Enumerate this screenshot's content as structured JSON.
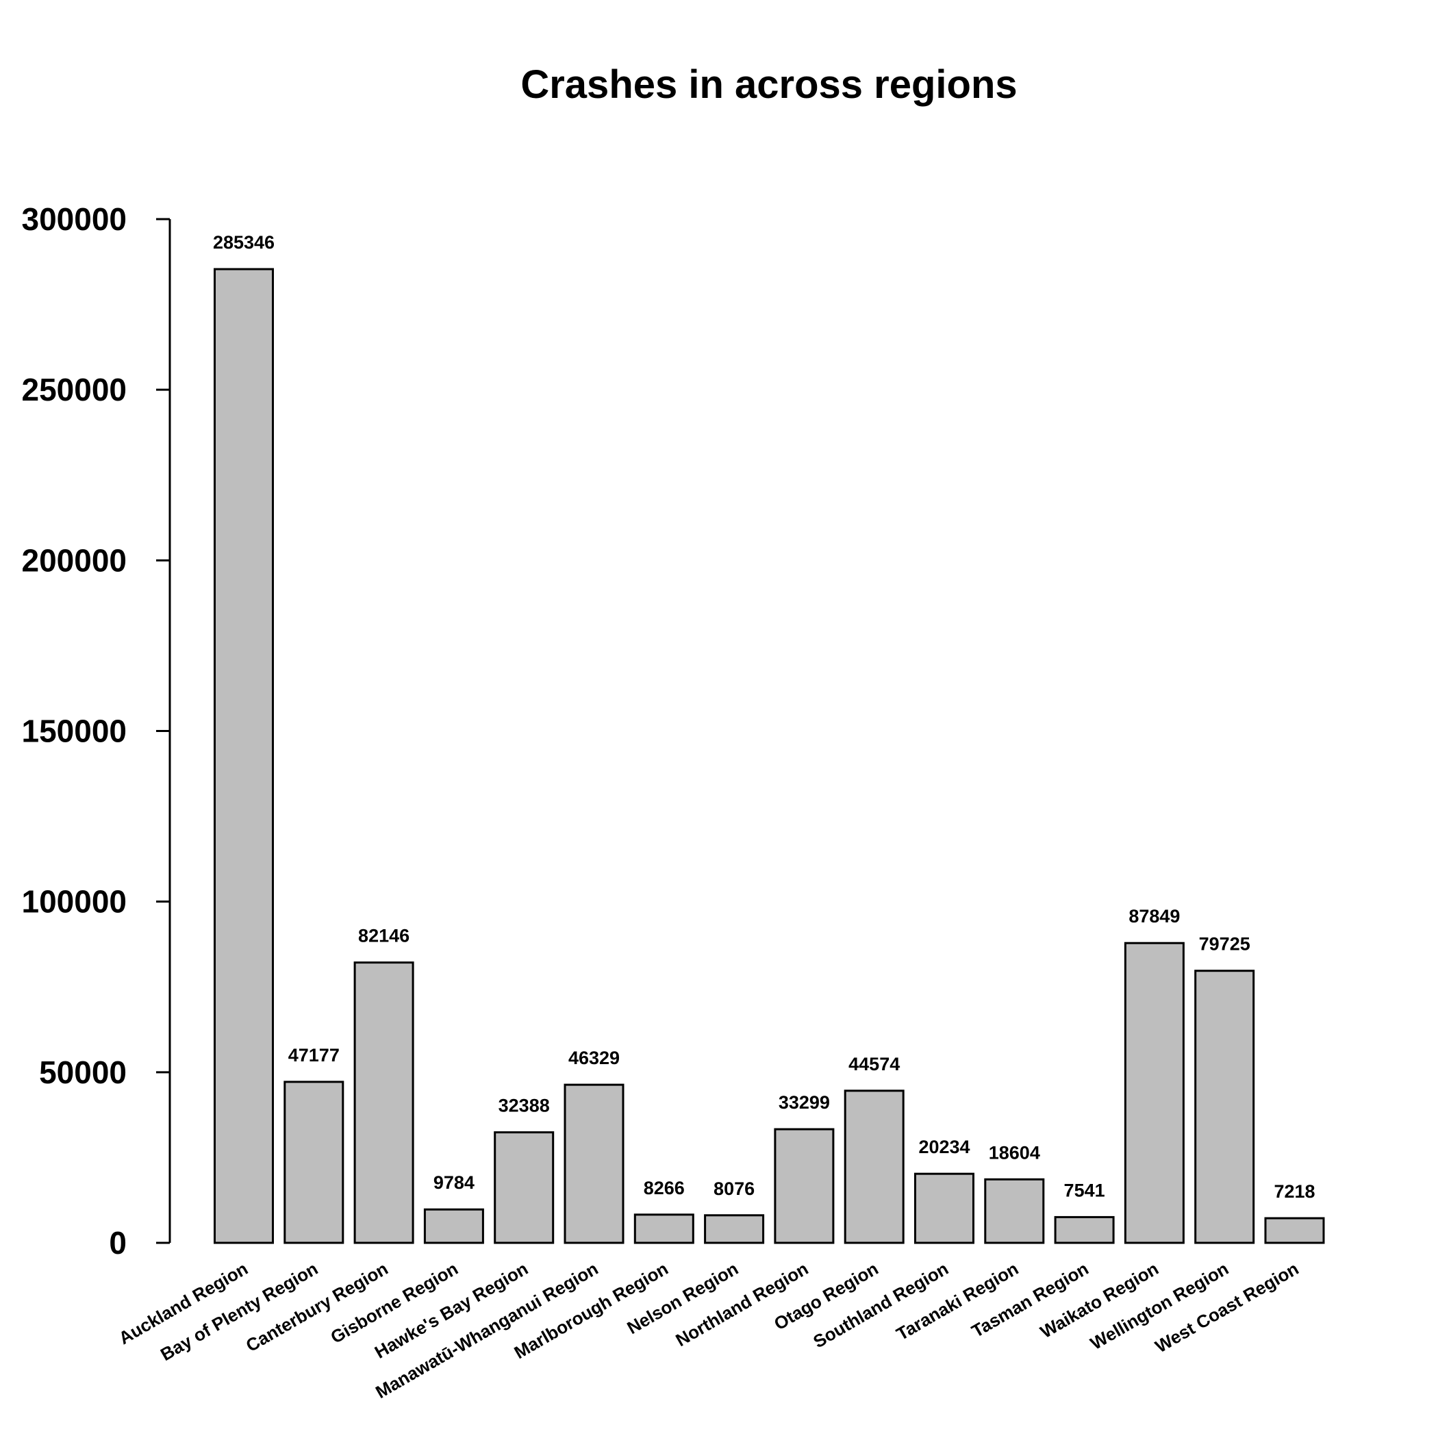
{
  "chart_data": {
    "type": "bar",
    "title": "Crashes in across regions",
    "xlabel": "",
    "ylabel": "",
    "categories": [
      "Auckland Region",
      "Bay of Plenty Region",
      "Canterbury Region",
      "Gisborne Region",
      "Hawke's Bay Region",
      "Manawatū-Whanganui Region",
      "Marlborough Region",
      "Nelson Region",
      "Northland Region",
      "Otago Region",
      "Southland Region",
      "Taranaki Region",
      "Tasman Region",
      "Waikato Region",
      "Wellington Region",
      "West Coast Region"
    ],
    "values": [
      285346,
      47177,
      82146,
      9784,
      32388,
      46329,
      8266,
      8076,
      33299,
      44574,
      20234,
      18604,
      7541,
      87849,
      79725,
      7218
    ],
    "ylim": [
      0,
      300000
    ],
    "yticks": [
      0,
      50000,
      100000,
      150000,
      200000,
      250000,
      300000
    ],
    "grid": false,
    "bar_color": "#bebebe",
    "data_labels": true
  }
}
